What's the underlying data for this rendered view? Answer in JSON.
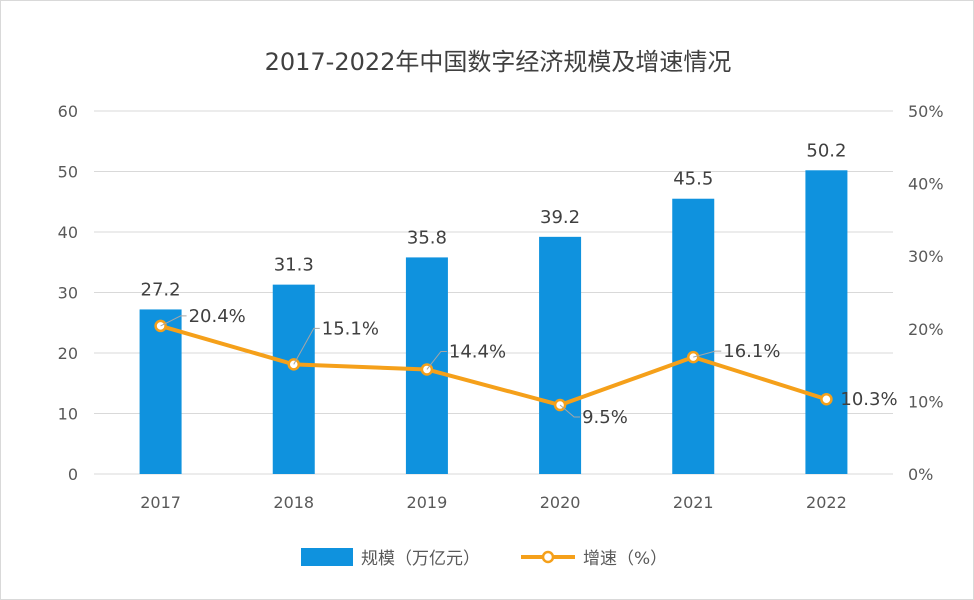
{
  "chart_data": {
    "type": "bar+line",
    "title": "2017-2022年中国数字经济规模及增速情况",
    "categories": [
      "2017",
      "2018",
      "2019",
      "2020",
      "2021",
      "2022"
    ],
    "series": [
      {
        "name": "规模（万亿元）",
        "type": "bar",
        "axis": "left",
        "values": [
          27.2,
          31.3,
          35.8,
          39.2,
          45.5,
          50.2
        ],
        "labels": [
          "27.2",
          "31.3",
          "35.8",
          "39.2",
          "45.5",
          "50.2"
        ],
        "color": "#0f92de"
      },
      {
        "name": "增速（%）",
        "type": "line",
        "axis": "right",
        "values": [
          20.4,
          15.1,
          14.4,
          9.5,
          16.1,
          10.3
        ],
        "labels": [
          "20.4%",
          "15.1%",
          "14.4%",
          "9.5%",
          "16.1%",
          "10.3%"
        ],
        "color": "#f5a01a"
      }
    ],
    "y_left": {
      "min": 0,
      "max": 60,
      "ticks": [
        "0",
        "10",
        "20",
        "30",
        "40",
        "50",
        "60"
      ]
    },
    "y_right": {
      "min": 0,
      "max": 50,
      "ticks": [
        "0%",
        "10%",
        "20%",
        "30%",
        "40%",
        "50%"
      ]
    },
    "grid": true,
    "legend_position": "bottom"
  }
}
